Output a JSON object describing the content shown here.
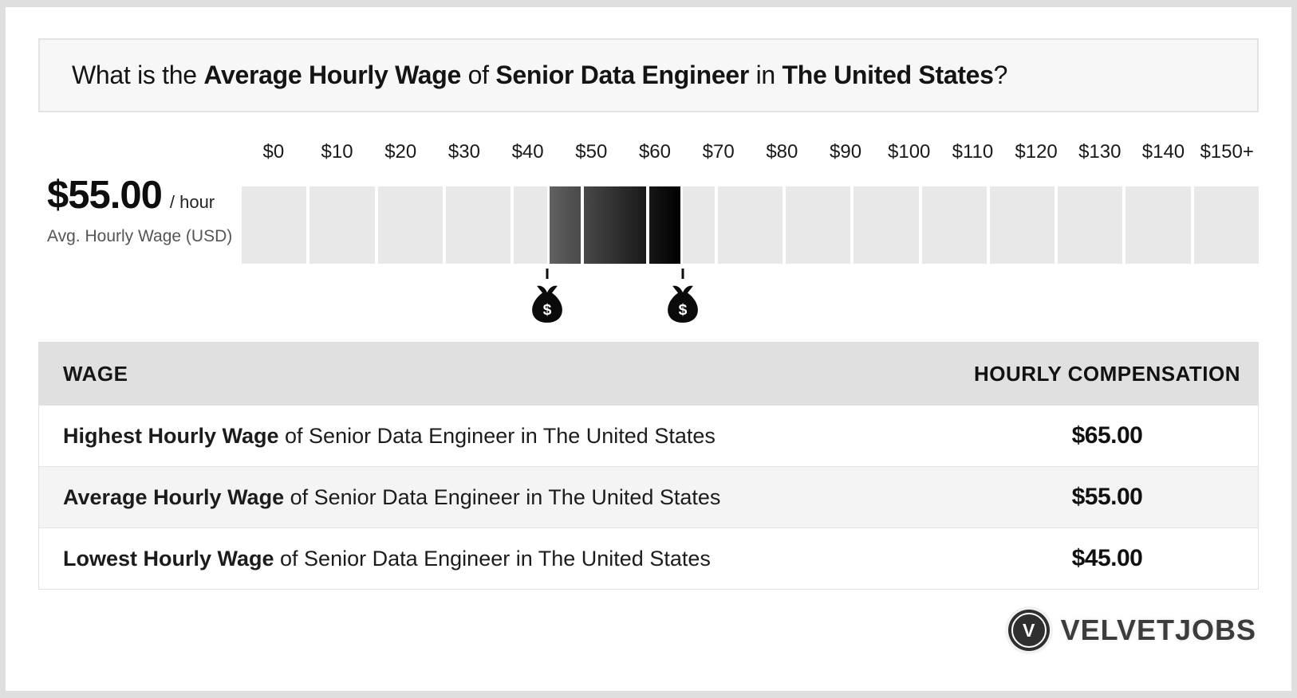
{
  "title": {
    "parts": [
      {
        "text": "What is the ",
        "bold": false
      },
      {
        "text": "Average Hourly Wage",
        "bold": true
      },
      {
        "text": " of ",
        "bold": false
      },
      {
        "text": "Senior Data Engineer",
        "bold": true
      },
      {
        "text": " in ",
        "bold": false
      },
      {
        "text": "The United States",
        "bold": true
      },
      {
        "text": "?",
        "bold": false
      }
    ]
  },
  "stat": {
    "value": "$55.00",
    "unit": "/ hour",
    "caption": "Avg. Hourly Wage (USD)"
  },
  "chart_data": {
    "type": "bar",
    "title": "Average Hourly Wage of Senior Data Engineer in The United States",
    "axis_min": 0,
    "axis_max": 150,
    "axis_tick_step": 10,
    "axis_ticks": [
      "$0",
      "$10",
      "$20",
      "$30",
      "$40",
      "$50",
      "$60",
      "$70",
      "$80",
      "$90",
      "$100",
      "$110",
      "$120",
      "$130",
      "$140",
      "$150+"
    ],
    "segments": 15,
    "track_color": "#e8e8e8",
    "highlight": {
      "start": 45,
      "end": 65,
      "gradient_from": "#616161",
      "gradient_to": "#000000"
    },
    "markers": [
      {
        "value": 45,
        "icon": "money-bag"
      },
      {
        "value": 65,
        "icon": "money-bag"
      }
    ],
    "marker_icon_glyph": "$",
    "values": {
      "lowest": 45,
      "average": 55,
      "highest": 65,
      "unit": "USD per hour"
    }
  },
  "table": {
    "headers": {
      "wage": "WAGE",
      "compensation": "HOURLY COMPENSATION"
    },
    "rows": [
      {
        "label_bold": "Highest Hourly Wage",
        "label_rest": " of Senior Data Engineer in The United States",
        "value": "$65.00"
      },
      {
        "label_bold": "Average Hourly Wage",
        "label_rest": " of Senior Data Engineer in The United States",
        "value": "$55.00"
      },
      {
        "label_bold": "Lowest Hourly Wage",
        "label_rest": " of Senior Data Engineer in The United States",
        "value": "$45.00"
      }
    ]
  },
  "footer": {
    "brand_initial": "V",
    "brand": "VELVETJOBS"
  },
  "colors": {
    "frame": "#dfdfdf",
    "card": "#ffffff",
    "title_box_bg": "#f7f7f7",
    "track": "#e8e8e8",
    "table_header_bg": "#e0e0e0",
    "table_alt_row_bg": "#f4f4f4",
    "highlight_from": "#616161",
    "highlight_to": "#000000"
  }
}
